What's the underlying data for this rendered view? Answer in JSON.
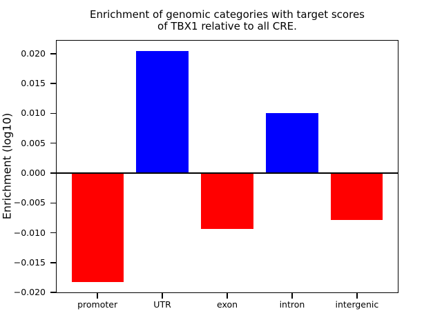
{
  "chart_data": {
    "type": "bar",
    "title": "Enrichment of genomic categories with target scores\nof TBX1 relative to all CRE.",
    "ylabel": "Enrichment (log10)",
    "xlabel": "",
    "categories": [
      "promoter",
      "UTR",
      "exon",
      "intron",
      "intergenic"
    ],
    "values": [
      -0.0183,
      0.0205,
      -0.0093,
      0.01,
      -0.0078
    ],
    "yticks": [
      0.02,
      0.015,
      0.01,
      0.005,
      0.0,
      -0.005,
      -0.01,
      -0.015,
      -0.02
    ],
    "ytick_labels": [
      "0.020",
      "0.015",
      "0.010",
      "0.005",
      "0.000",
      "−0.005",
      "−0.010",
      "−0.015",
      "−0.020"
    ],
    "ylim": [
      -0.0201,
      0.0223
    ],
    "xlim": [
      -0.64,
      4.64
    ],
    "bar_width": 0.8,
    "positive_color": "#0000ff",
    "negative_color": "#ff0000",
    "axis_color": "#000000",
    "background": "#ffffff",
    "zero_line": true,
    "grid": false,
    "legend": null
  }
}
